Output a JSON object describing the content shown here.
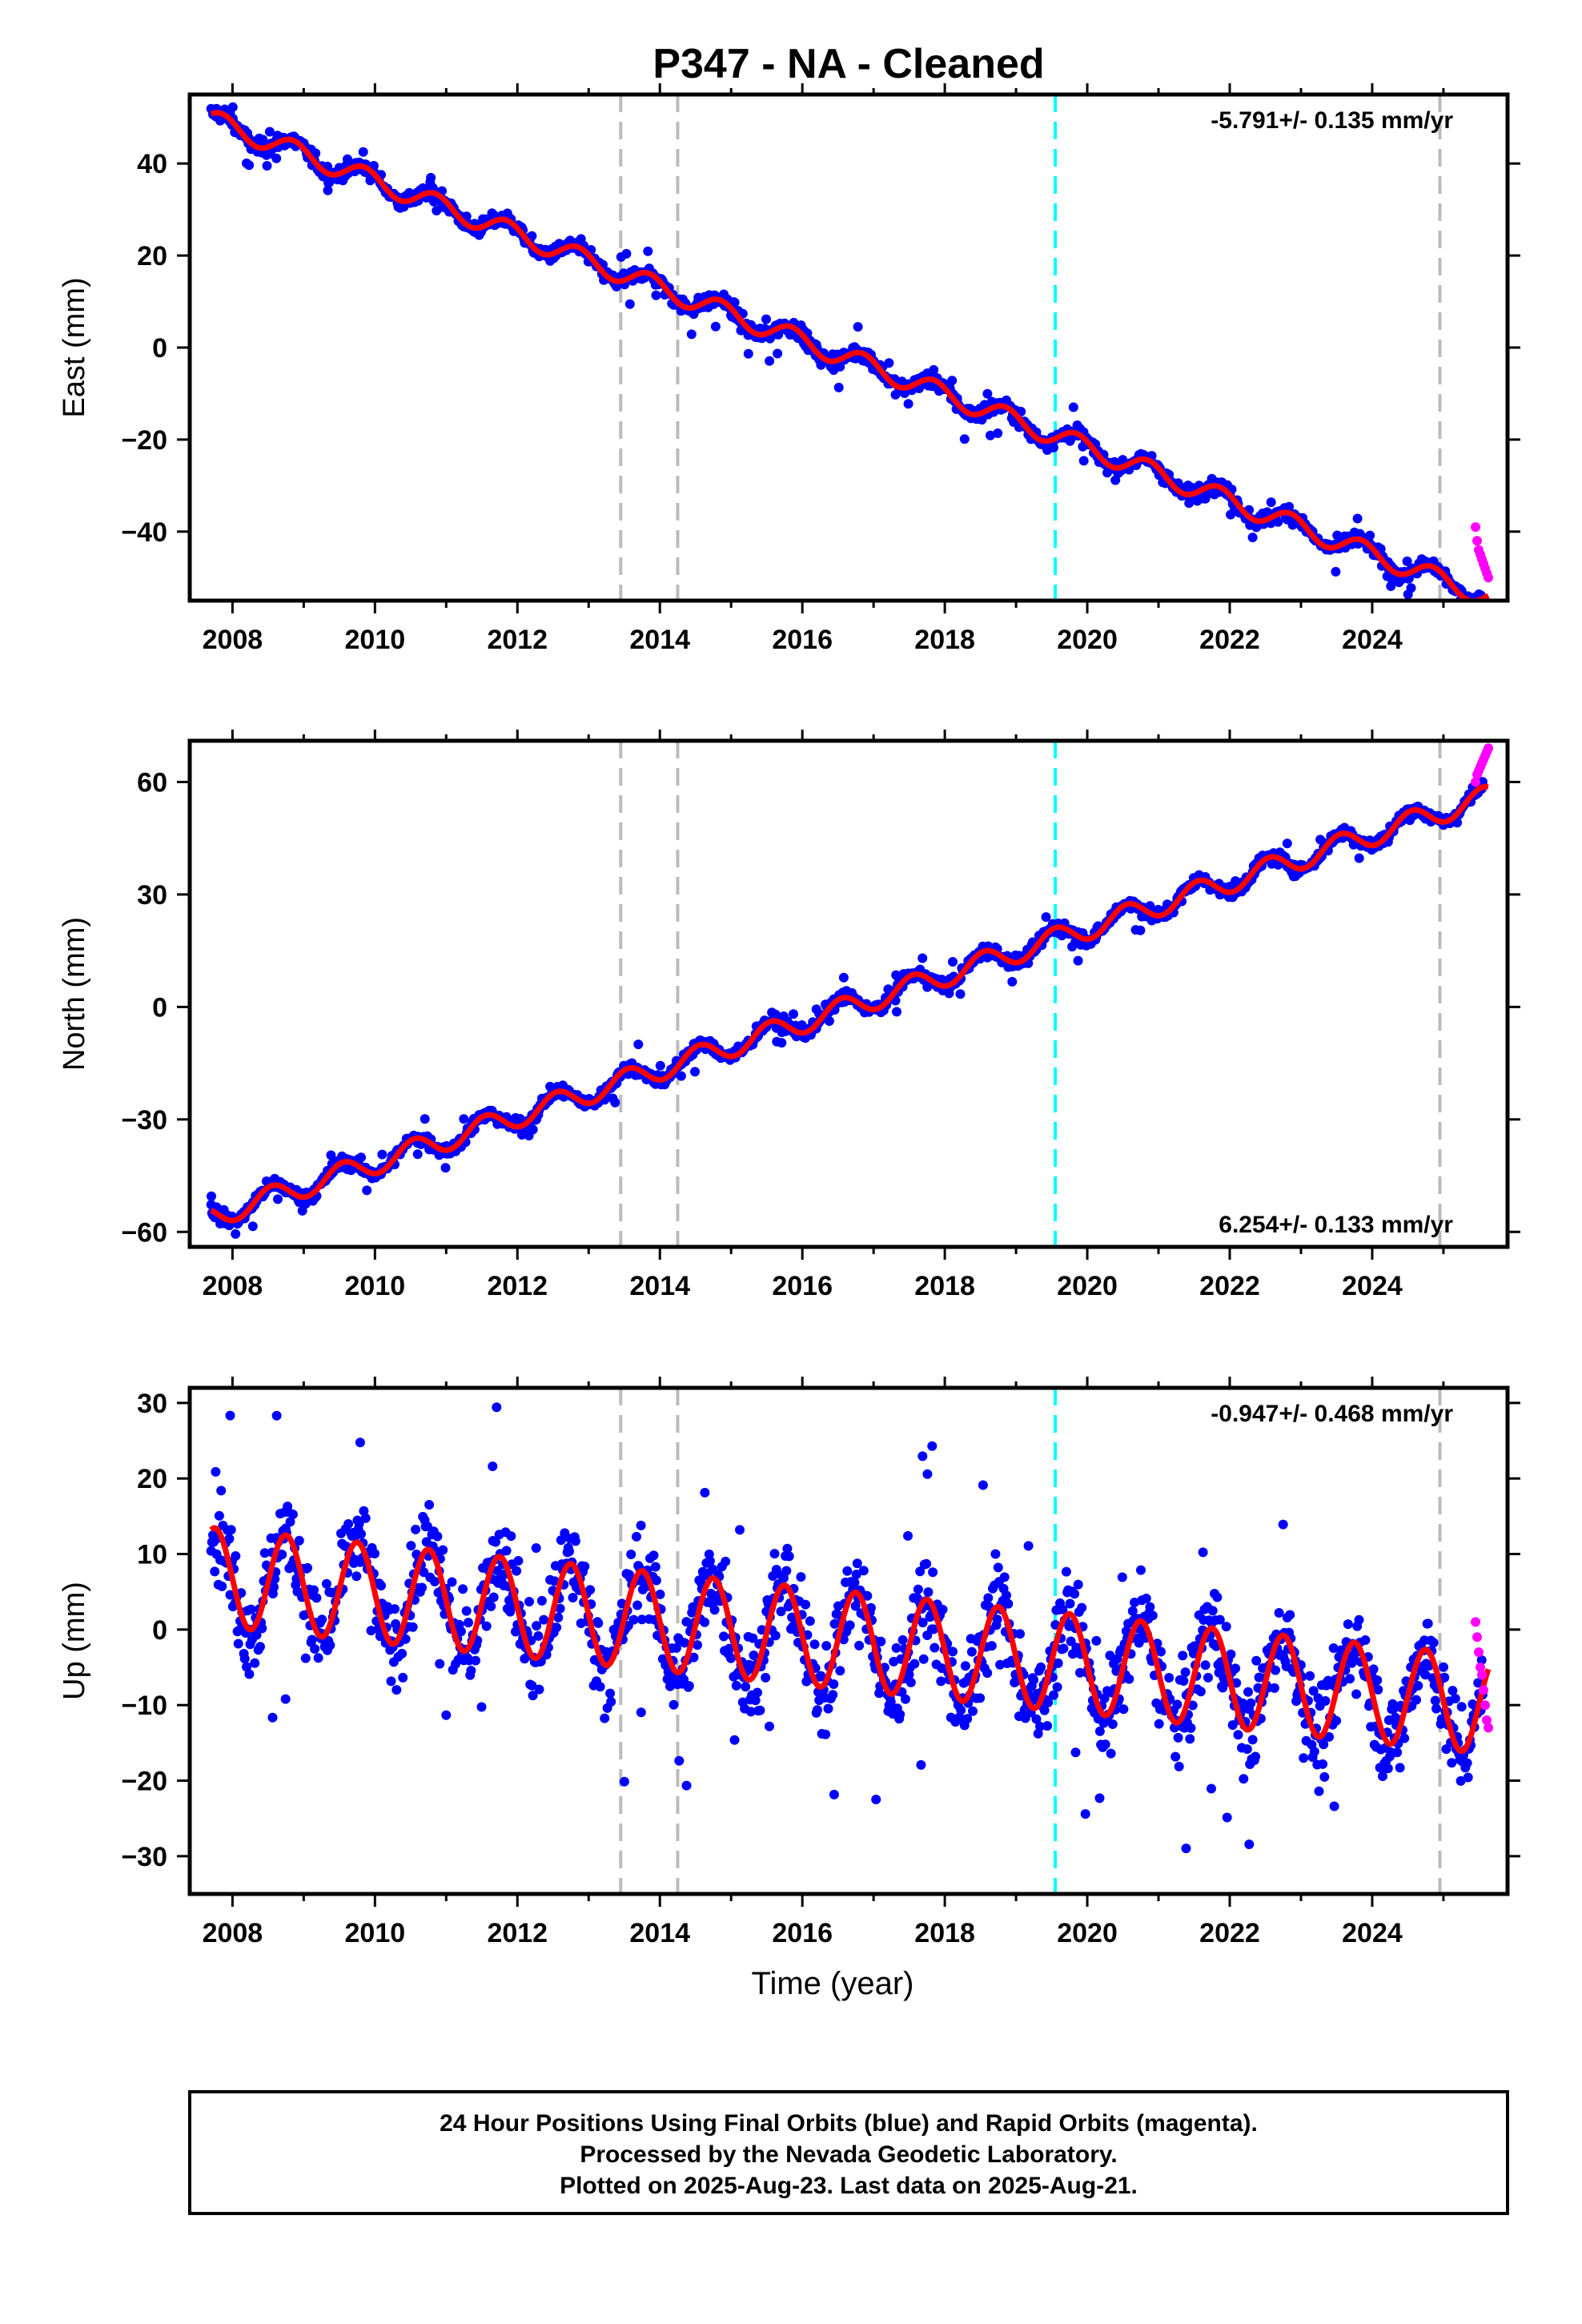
{
  "title": "P347  - NA - Cleaned",
  "footer": {
    "lines": [
      "24 Hour Positions Using Final Orbits (blue) and Rapid Orbits (magenta).",
      "Processed by the Nevada Geodetic Laboratory.",
      "Plotted on 2025-Aug-23. Last data on 2025-Aug-21."
    ]
  },
  "colors": {
    "final_orbits": "#0000ff",
    "rapid_orbits": "#ff00ff",
    "model": "#ff0000",
    "event_gray": "#bbbbbb",
    "event_cyan": "#00ffff"
  },
  "chart_data": [
    {
      "type": "scatter",
      "component": "east",
      "ylabel": "East (mm)",
      "xlabel": "",
      "xlim": [
        2007.4,
        2025.9
      ],
      "ylim": [
        -55,
        55
      ],
      "x_ticks": [
        2008,
        2010,
        2012,
        2014,
        2016,
        2018,
        2020,
        2022,
        2024
      ],
      "x_tick_labels": [
        "2008",
        "2010",
        "2012",
        "2014",
        "2016",
        "2018",
        "2020",
        "2022",
        "2024"
      ],
      "y_ticks": [
        -40,
        -20,
        0,
        20,
        40
      ],
      "y_tick_labels": [
        "−40",
        "−20",
        "0",
        "20",
        "40"
      ],
      "rate_label": "-5.791+/- 0.135 mm/yr",
      "rate_position": "top-right",
      "model": {
        "ref_year": 2007.7,
        "offset": 49.5,
        "rate": -5.791,
        "seasonal_amplitude": 2.2,
        "seasonal_peak": 0.85,
        "noise": 1.2
      },
      "data_range": [
        2007.7,
        2025.55
      ],
      "rapid_range": [
        2025.45,
        2025.63
      ],
      "rapid_values": [
        -39,
        -42,
        -44,
        -45,
        -46,
        -47,
        -48,
        -49,
        -50
      ],
      "events": [
        {
          "year": 2013.45,
          "color": "gray"
        },
        {
          "year": 2014.25,
          "color": "gray"
        },
        {
          "year": 2019.55,
          "color": "cyan"
        },
        {
          "year": 2024.95,
          "color": "gray"
        }
      ]
    },
    {
      "type": "scatter",
      "component": "north",
      "ylabel": "North (mm)",
      "xlabel": "",
      "xlim": [
        2007.4,
        2025.9
      ],
      "ylim": [
        -64,
        71
      ],
      "x_ticks": [
        2008,
        2010,
        2012,
        2014,
        2016,
        2018,
        2020,
        2022,
        2024
      ],
      "x_tick_labels": [
        "2008",
        "2010",
        "2012",
        "2014",
        "2016",
        "2018",
        "2020",
        "2022",
        "2024"
      ],
      "y_ticks": [
        -60,
        -30,
        0,
        30,
        60
      ],
      "y_tick_labels": [
        "−60",
        "−30",
        "0",
        "30",
        "60"
      ],
      "rate_label": "6.254+/- 0.133 mm/yr",
      "rate_position": "bottom-right",
      "model": {
        "ref_year": 2007.7,
        "offset": -56,
        "rate": 6.254,
        "seasonal_amplitude": 3.0,
        "seasonal_peak": 0.55,
        "noise": 1.3
      },
      "data_range": [
        2007.7,
        2025.55
      ],
      "rapid_range": [
        2025.45,
        2025.63
      ],
      "rapid_values": [
        60,
        62,
        63,
        64,
        65,
        66,
        67,
        68,
        69
      ],
      "events": [
        {
          "year": 2013.45,
          "color": "gray"
        },
        {
          "year": 2014.25,
          "color": "gray"
        },
        {
          "year": 2019.55,
          "color": "cyan"
        },
        {
          "year": 2024.95,
          "color": "gray"
        }
      ]
    },
    {
      "type": "scatter",
      "component": "up",
      "ylabel": "Up (mm)",
      "xlabel": "Time (year)",
      "xlim": [
        2007.4,
        2025.9
      ],
      "ylim": [
        -35,
        32
      ],
      "x_ticks": [
        2008,
        2010,
        2012,
        2014,
        2016,
        2018,
        2020,
        2022,
        2024
      ],
      "x_tick_labels": [
        "2008",
        "2010",
        "2012",
        "2014",
        "2016",
        "2018",
        "2020",
        "2022",
        "2024"
      ],
      "y_ticks": [
        -30,
        -20,
        -10,
        0,
        10,
        20,
        30
      ],
      "y_tick_labels": [
        "−30",
        "−20",
        "−10",
        "0",
        "10",
        "20",
        "30"
      ],
      "rate_label": "-0.947+/- 0.468 mm/yr",
      "rate_position": "top-right",
      "model": {
        "ref_year": 2007.7,
        "offset": 7,
        "rate": -0.947,
        "seasonal_amplitude": 6.5,
        "seasonal_peak": 0.75,
        "noise": 4.2
      },
      "data_range": [
        2007.7,
        2025.55
      ],
      "rapid_range": [
        2025.45,
        2025.63
      ],
      "rapid_values": [
        1,
        -1,
        -3,
        -5,
        -6,
        -8,
        -10,
        -12,
        -13
      ],
      "events": [
        {
          "year": 2013.45,
          "color": "gray"
        },
        {
          "year": 2014.25,
          "color": "gray"
        },
        {
          "year": 2019.55,
          "color": "cyan"
        },
        {
          "year": 2024.95,
          "color": "gray"
        }
      ]
    }
  ]
}
